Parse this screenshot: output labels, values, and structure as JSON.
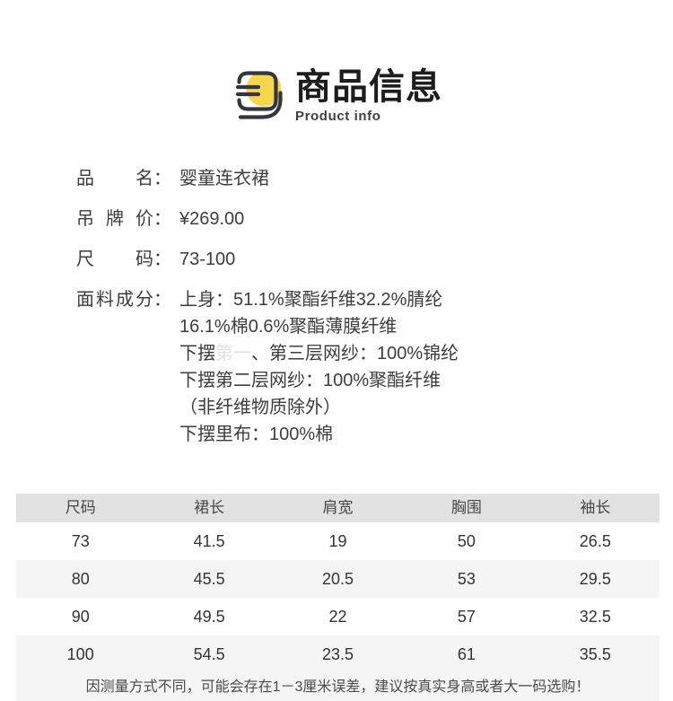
{
  "colors": {
    "accent_yellow": "#f7d54e",
    "icon_stroke": "#33363b",
    "table_header_bg": "#e3e2e2",
    "table_alt_bg": "#f6f5f5"
  },
  "header": {
    "icon": "product-info-badge-icon",
    "title": "商品信息",
    "subtitle": "Product info"
  },
  "details": [
    {
      "label": "品名：",
      "lines": [
        "婴童连衣裙"
      ]
    },
    {
      "label": "吊牌价：",
      "lines": [
        "¥269.00"
      ]
    },
    {
      "label": "尺码：",
      "lines": [
        "73-100"
      ]
    },
    {
      "label": "面料成分：",
      "lines": [
        "上身：51.1%聚酯纤维32.2%腈纶",
        "16.1%棉0.6%聚酯薄膜纤维",
        {
          "pre": "下摆",
          "obscured": "第一",
          "post": "、第三层网纱：100%锦纶"
        },
        "下摆第二层网纱：100%聚酯纤维",
        "（非纤维物质除外）",
        "下摆里布：100%棉"
      ]
    }
  ],
  "size_table": {
    "columns": [
      "尺码",
      "裙长",
      "肩宽",
      "胸围",
      "袖长"
    ],
    "rows": [
      [
        "73",
        "41.5",
        "19",
        "50",
        "26.5"
      ],
      [
        "80",
        "45.5",
        "20.5",
        "53",
        "29.5"
      ],
      [
        "90",
        "49.5",
        "22",
        "57",
        "32.5"
      ],
      [
        "100",
        "54.5",
        "23.5",
        "61",
        "35.5"
      ]
    ],
    "note": "因测量方式不同，可能会存在1－3厘米误差，建议按真实身高或者大一码选购！"
  }
}
